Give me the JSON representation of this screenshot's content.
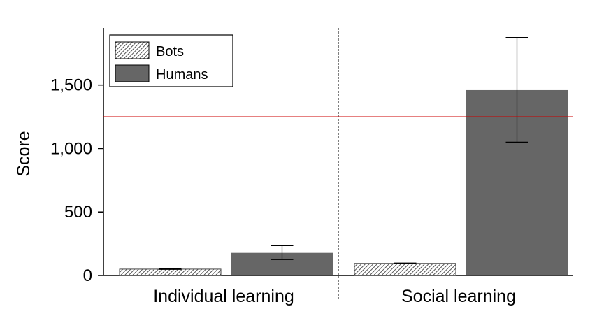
{
  "chart_data": {
    "type": "bar",
    "categories": [
      "Individual learning",
      "Social learning"
    ],
    "series": [
      {
        "name": "Bots",
        "values": [
          50,
          95
        ],
        "error_low": [
          48,
          93
        ],
        "error_high": [
          52,
          98
        ],
        "pattern": "hatched"
      },
      {
        "name": "Humans",
        "values": [
          178,
          1460
        ],
        "error_low": [
          125,
          1050
        ],
        "error_high": [
          235,
          1875
        ],
        "color": "#666666"
      }
    ],
    "ylabel": "Score",
    "xlabel": "",
    "ylim": [
      0,
      1950
    ],
    "yticks": [
      0,
      500,
      1000,
      1500
    ],
    "ytick_labels": [
      "0",
      "500",
      "1,000",
      "1,500"
    ],
    "reference_line": {
      "value": 1250,
      "color": "#cc0000"
    },
    "category_divider": "dotted",
    "legend": {
      "placement": "top-left",
      "entries": [
        "Bots",
        "Humans"
      ]
    }
  }
}
